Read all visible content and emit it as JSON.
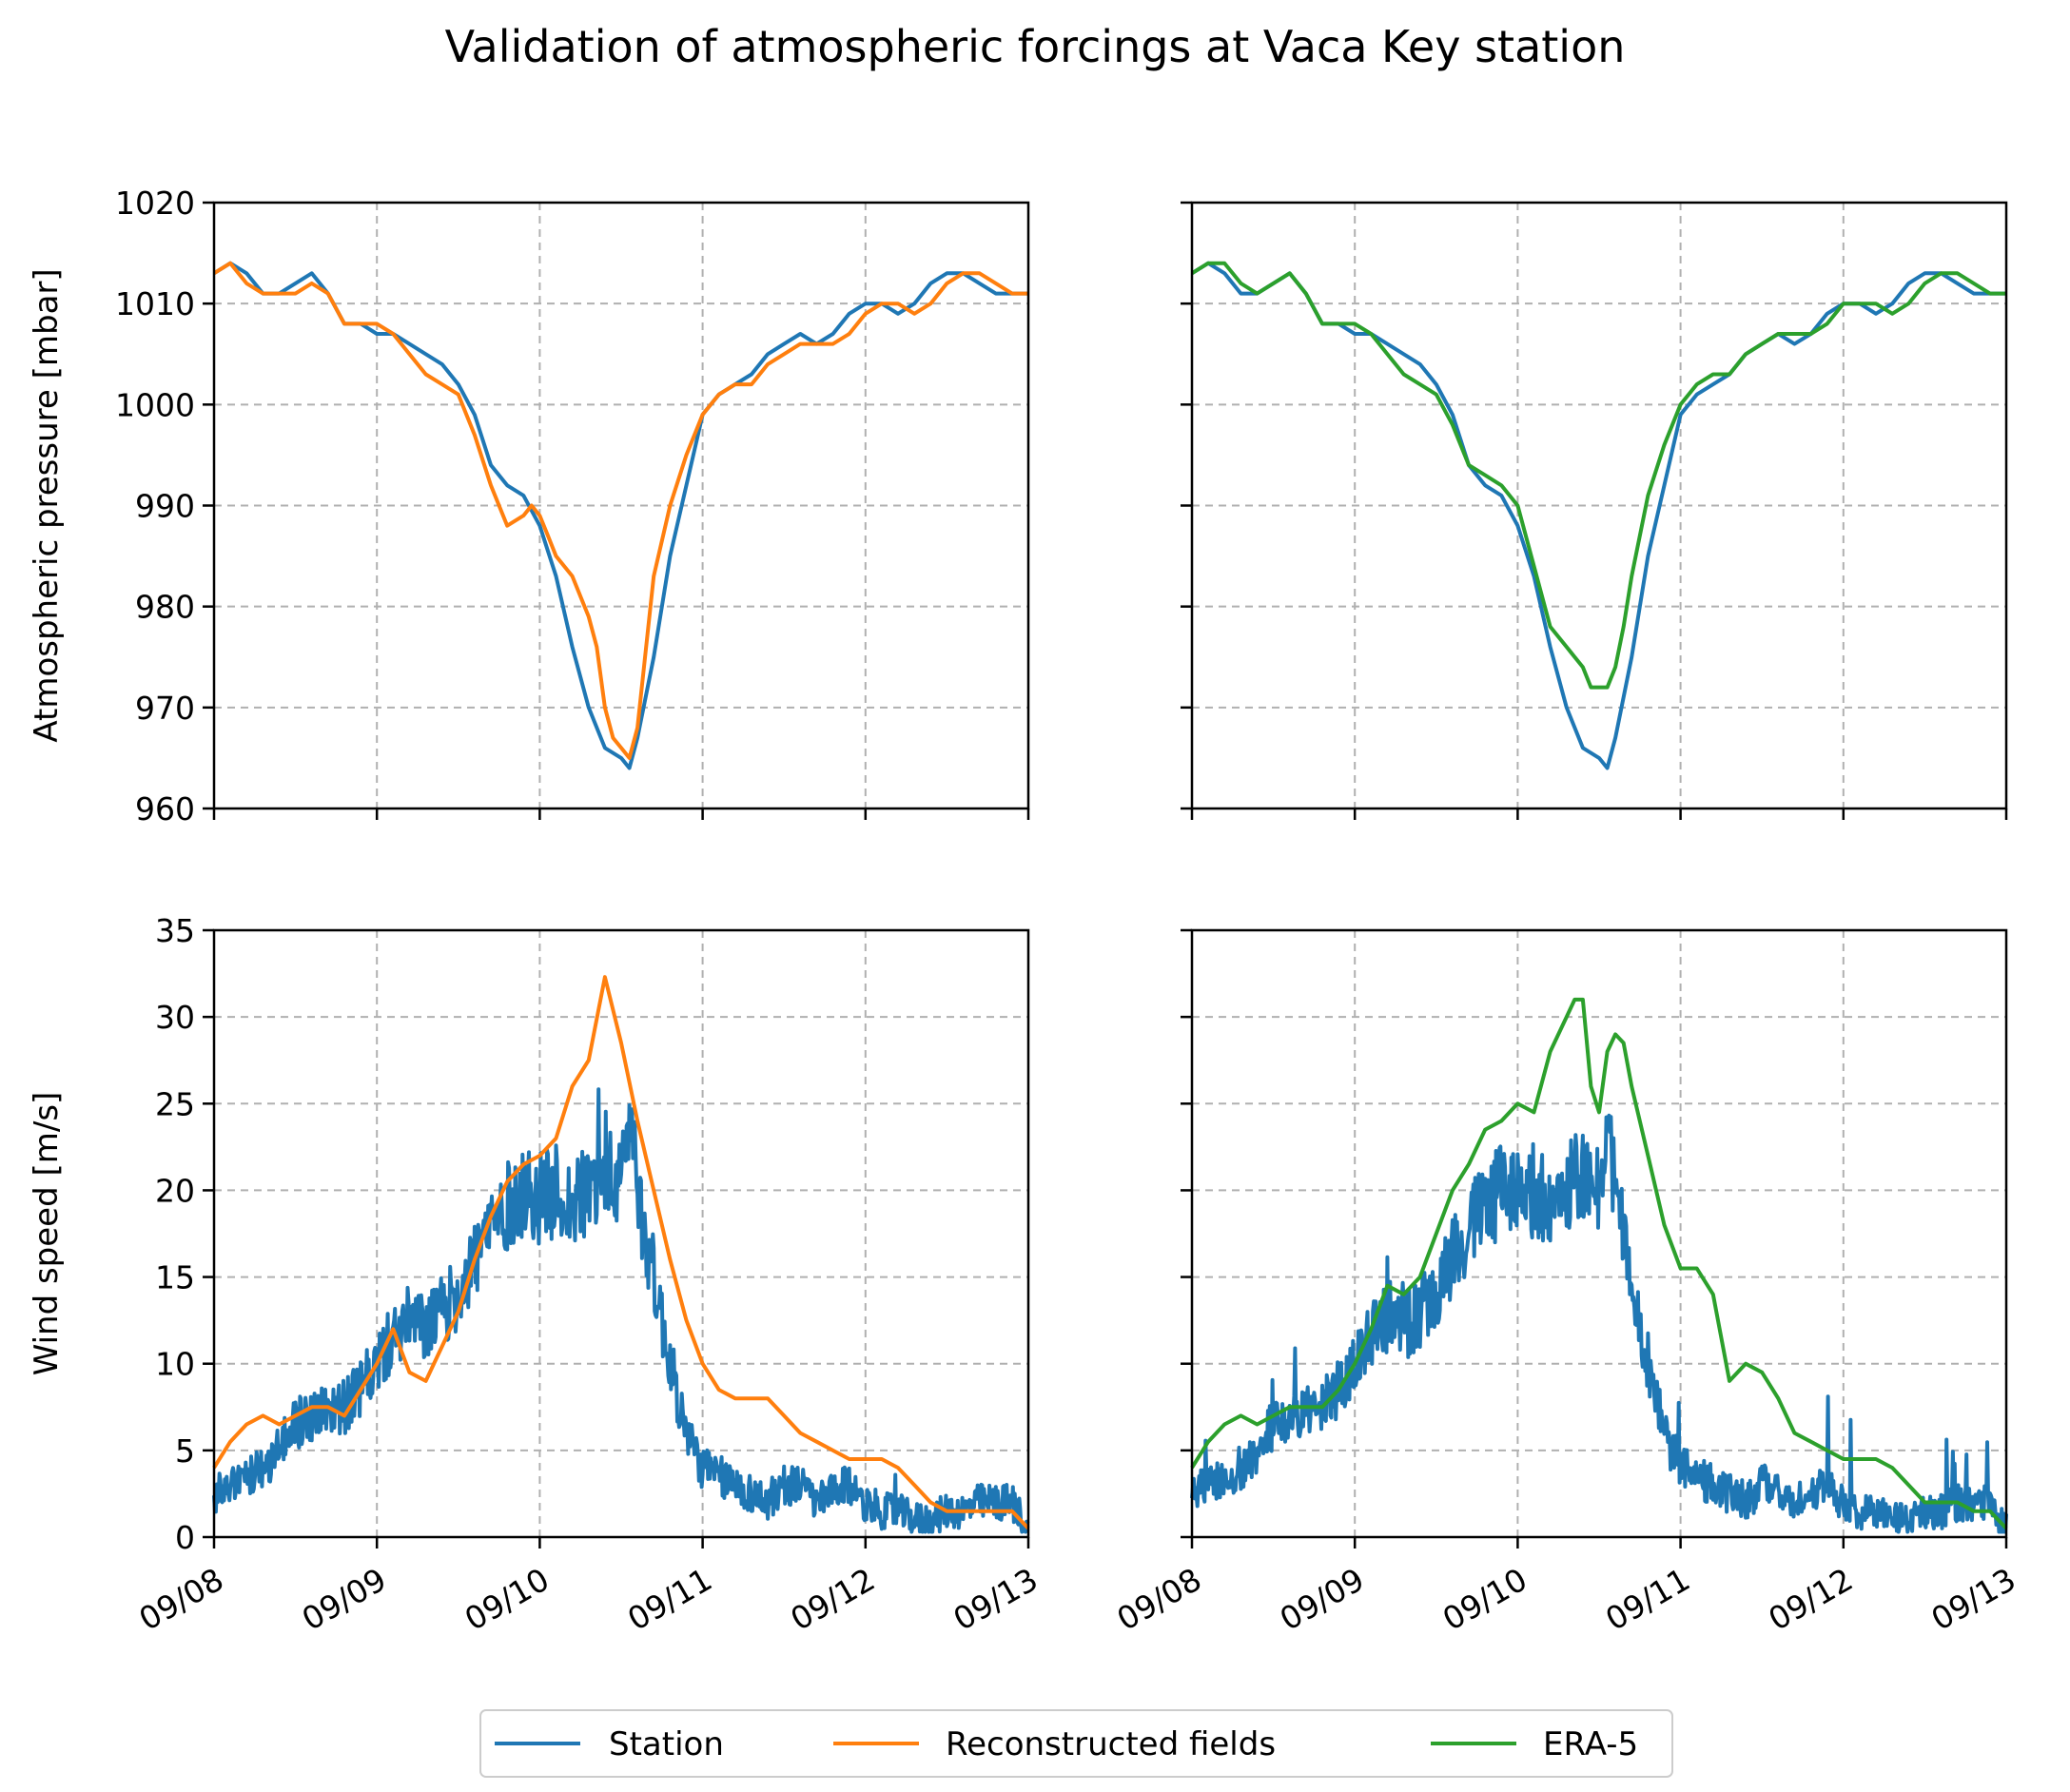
{
  "title": "Validation of atmospheric forcings at Vaca Key station",
  "colors": {
    "station": "#1f77b4",
    "reconstructed": "#ff7f0e",
    "era5": "#2ca02c"
  },
  "legend": {
    "placement": "bottom-center",
    "items": [
      "Station",
      "Reconstructed fields",
      "ERA-5"
    ]
  },
  "chart_data": [
    {
      "type": "line",
      "position": "top-left",
      "xlabel": "",
      "ylabel": "Atmospheric pressure [mbar]",
      "xlim": [
        "09/08",
        "09/13"
      ],
      "ylim": [
        960,
        1020
      ],
      "yticks": [
        960,
        970,
        980,
        990,
        1000,
        1010,
        1020
      ],
      "xticks": [
        "09/08",
        "09/09",
        "09/10",
        "09/11",
        "09/12",
        "09/13"
      ],
      "show_xticklabels": false,
      "show_yticklabels": true,
      "grid": true,
      "series": [
        {
          "name": "Station",
          "color": "#1f77b4",
          "x": [
            0,
            0.1,
            0.2,
            0.3,
            0.4,
            0.5,
            0.6,
            0.7,
            0.8,
            0.9,
            1.0,
            1.1,
            1.2,
            1.3,
            1.4,
            1.5,
            1.6,
            1.7,
            1.8,
            1.9,
            2.0,
            2.1,
            2.2,
            2.3,
            2.4,
            2.5,
            2.55,
            2.6,
            2.7,
            2.8,
            2.9,
            3.0,
            3.1,
            3.2,
            3.3,
            3.4,
            3.5,
            3.6,
            3.7,
            3.8,
            3.9,
            4.0,
            4.1,
            4.2,
            4.3,
            4.4,
            4.5,
            4.6,
            4.7,
            4.8,
            4.9,
            5.0
          ],
          "y": [
            1013,
            1014,
            1013,
            1011,
            1011,
            1012,
            1013,
            1011,
            1008,
            1008,
            1007,
            1007,
            1006,
            1005,
            1004,
            1002,
            999,
            994,
            992,
            991,
            988,
            983,
            976,
            970,
            966,
            965,
            964,
            967,
            975,
            985,
            992,
            999,
            1001,
            1002,
            1003,
            1005,
            1006,
            1007,
            1006,
            1007,
            1009,
            1010,
            1010,
            1009,
            1010,
            1012,
            1013,
            1013,
            1012,
            1011,
            1011,
            1011
          ]
        },
        {
          "name": "Reconstructed fields",
          "color": "#ff7f0e",
          "x": [
            0,
            0.1,
            0.2,
            0.3,
            0.4,
            0.5,
            0.6,
            0.7,
            0.8,
            0.9,
            1.0,
            1.1,
            1.2,
            1.3,
            1.4,
            1.5,
            1.6,
            1.7,
            1.8,
            1.9,
            1.95,
            2.0,
            2.05,
            2.1,
            2.2,
            2.3,
            2.35,
            2.4,
            2.45,
            2.5,
            2.55,
            2.6,
            2.7,
            2.8,
            2.9,
            3.0,
            3.1,
            3.2,
            3.3,
            3.4,
            3.5,
            3.6,
            3.7,
            3.8,
            3.9,
            4.0,
            4.1,
            4.2,
            4.3,
            4.4,
            4.5,
            4.6,
            4.7,
            4.8,
            4.9,
            5.0
          ],
          "y": [
            1013,
            1014,
            1012,
            1011,
            1011,
            1011,
            1012,
            1011,
            1008,
            1008,
            1008,
            1007,
            1005,
            1003,
            1002,
            1001,
            997,
            992,
            988,
            989,
            990,
            989,
            987,
            985,
            983,
            979,
            976,
            970,
            967,
            966,
            965,
            968,
            983,
            990,
            995,
            999,
            1001,
            1002,
            1002,
            1004,
            1005,
            1006,
            1006,
            1006,
            1007,
            1009,
            1010,
            1010,
            1009,
            1010,
            1012,
            1013,
            1013,
            1012,
            1011,
            1011
          ]
        },
        {
          "name": "ERA-5",
          "color": "#2ca02c",
          "visible": false,
          "x": [],
          "y": []
        }
      ]
    },
    {
      "type": "line",
      "position": "top-right",
      "xlabel": "",
      "ylabel": "",
      "xlim": [
        "09/08",
        "09/13"
      ],
      "ylim": [
        960,
        1020
      ],
      "yticks": [
        960,
        970,
        980,
        990,
        1000,
        1010,
        1020
      ],
      "xticks": [
        "09/08",
        "09/09",
        "09/10",
        "09/11",
        "09/12",
        "09/13"
      ],
      "show_xticklabels": false,
      "show_yticklabels": false,
      "grid": true,
      "series": [
        {
          "name": "Station",
          "color": "#1f77b4",
          "x": [
            0,
            0.1,
            0.2,
            0.3,
            0.4,
            0.5,
            0.6,
            0.7,
            0.8,
            0.9,
            1.0,
            1.1,
            1.2,
            1.3,
            1.4,
            1.5,
            1.6,
            1.7,
            1.8,
            1.9,
            2.0,
            2.1,
            2.2,
            2.3,
            2.4,
            2.5,
            2.55,
            2.6,
            2.7,
            2.8,
            2.9,
            3.0,
            3.1,
            3.2,
            3.3,
            3.4,
            3.5,
            3.6,
            3.7,
            3.8,
            3.9,
            4.0,
            4.1,
            4.2,
            4.3,
            4.4,
            4.5,
            4.6,
            4.7,
            4.8,
            4.9,
            5.0
          ],
          "y": [
            1013,
            1014,
            1013,
            1011,
            1011,
            1012,
            1013,
            1011,
            1008,
            1008,
            1007,
            1007,
            1006,
            1005,
            1004,
            1002,
            999,
            994,
            992,
            991,
            988,
            983,
            976,
            970,
            966,
            965,
            964,
            967,
            975,
            985,
            992,
            999,
            1001,
            1002,
            1003,
            1005,
            1006,
            1007,
            1006,
            1007,
            1009,
            1010,
            1010,
            1009,
            1010,
            1012,
            1013,
            1013,
            1012,
            1011,
            1011,
            1011
          ]
        },
        {
          "name": "Reconstructed fields",
          "color": "#ff7f0e",
          "visible": false,
          "x": [],
          "y": []
        },
        {
          "name": "ERA-5",
          "color": "#2ca02c",
          "x": [
            0,
            0.1,
            0.2,
            0.3,
            0.4,
            0.5,
            0.6,
            0.7,
            0.8,
            0.9,
            1.0,
            1.1,
            1.2,
            1.3,
            1.4,
            1.5,
            1.6,
            1.7,
            1.8,
            1.9,
            2.0,
            2.1,
            2.2,
            2.25,
            2.3,
            2.35,
            2.4,
            2.45,
            2.5,
            2.55,
            2.6,
            2.65,
            2.7,
            2.8,
            2.9,
            3.0,
            3.1,
            3.2,
            3.3,
            3.4,
            3.5,
            3.6,
            3.7,
            3.8,
            3.9,
            4.0,
            4.1,
            4.2,
            4.3,
            4.4,
            4.5,
            4.6,
            4.7,
            4.8,
            4.9,
            5.0
          ],
          "y": [
            1013,
            1014,
            1014,
            1012,
            1011,
            1012,
            1013,
            1011,
            1008,
            1008,
            1008,
            1007,
            1005,
            1003,
            1002,
            1001,
            998,
            994,
            993,
            992,
            990,
            984,
            978,
            977,
            976,
            975,
            974,
            972,
            972,
            972,
            974,
            978,
            983,
            991,
            996,
            1000,
            1002,
            1003,
            1003,
            1005,
            1006,
            1007,
            1007,
            1007,
            1008,
            1010,
            1010,
            1010,
            1009,
            1010,
            1012,
            1013,
            1013,
            1012,
            1011,
            1011
          ]
        }
      ]
    },
    {
      "type": "line",
      "position": "bottom-left",
      "xlabel": "",
      "ylabel": "Wind speed [m/s]",
      "xlim": [
        "09/08",
        "09/13"
      ],
      "ylim": [
        0,
        35
      ],
      "yticks": [
        0,
        5,
        10,
        15,
        20,
        25,
        30,
        35
      ],
      "xticks": [
        "09/08",
        "09/09",
        "09/10",
        "09/11",
        "09/12",
        "09/13"
      ],
      "show_xticklabels": true,
      "show_yticklabels": true,
      "grid": true,
      "series": [
        {
          "name": "Station",
          "color": "#1f77b4",
          "noisy": true,
          "x": [
            0,
            0.1,
            0.2,
            0.3,
            0.4,
            0.5,
            0.6,
            0.7,
            0.8,
            0.9,
            1.0,
            1.1,
            1.2,
            1.3,
            1.4,
            1.5,
            1.6,
            1.7,
            1.8,
            1.9,
            2.0,
            2.1,
            2.2,
            2.3,
            2.4,
            2.5,
            2.55,
            2.6,
            2.7,
            2.8,
            2.9,
            3.0,
            3.1,
            3.2,
            3.3,
            3.4,
            3.5,
            3.6,
            3.7,
            3.8,
            3.9,
            4.0,
            4.1,
            4.2,
            4.3,
            4.4,
            4.5,
            4.6,
            4.7,
            4.8,
            4.9,
            5.0
          ],
          "y": [
            2.5,
            3,
            3.5,
            4,
            5,
            6.5,
            7,
            7.5,
            7.5,
            8.5,
            10,
            11.5,
            12.5,
            12,
            13,
            14,
            16,
            18,
            19,
            20,
            19.5,
            20,
            19,
            20,
            21,
            20,
            25,
            20,
            15,
            10,
            6,
            4,
            3.5,
            3,
            2.5,
            2,
            3,
            3,
            2,
            2.5,
            3,
            2,
            1.5,
            1.5,
            1,
            1,
            1.5,
            1.5,
            2,
            2,
            2,
            0.5
          ]
        },
        {
          "name": "Reconstructed fields",
          "color": "#ff7f0e",
          "x": [
            0,
            0.1,
            0.2,
            0.3,
            0.4,
            0.5,
            0.6,
            0.7,
            0.8,
            0.9,
            1.0,
            1.1,
            1.2,
            1.3,
            1.4,
            1.5,
            1.6,
            1.7,
            1.8,
            1.9,
            2.0,
            2.1,
            2.2,
            2.3,
            2.4,
            2.5,
            2.6,
            2.7,
            2.8,
            2.9,
            3.0,
            3.1,
            3.2,
            3.3,
            3.4,
            3.5,
            3.6,
            3.7,
            3.8,
            3.9,
            4.0,
            4.1,
            4.2,
            4.3,
            4.4,
            4.5,
            4.6,
            4.7,
            4.8,
            4.9,
            5.0
          ],
          "y": [
            4,
            5.5,
            6.5,
            7,
            6.5,
            7,
            7.5,
            7.5,
            7,
            8.5,
            10,
            12,
            9.5,
            9,
            11,
            13,
            16,
            18.5,
            20.5,
            21.5,
            22,
            23,
            26,
            27.5,
            32.3,
            28.5,
            24,
            20,
            16,
            12.5,
            10,
            8.5,
            8,
            8,
            8,
            7,
            6,
            5.5,
            5,
            4.5,
            4.5,
            4.5,
            4,
            3,
            2,
            1.5,
            1.5,
            1.5,
            1.5,
            1.5,
            0.5
          ]
        },
        {
          "name": "ERA-5",
          "color": "#2ca02c",
          "visible": false,
          "x": [],
          "y": []
        }
      ]
    },
    {
      "type": "line",
      "position": "bottom-right",
      "xlabel": "",
      "ylabel": "",
      "xlim": [
        "09/08",
        "09/13"
      ],
      "ylim": [
        0,
        35
      ],
      "yticks": [
        0,
        5,
        10,
        15,
        20,
        25,
        30,
        35
      ],
      "xticks": [
        "09/08",
        "09/09",
        "09/10",
        "09/11",
        "09/12",
        "09/13"
      ],
      "show_xticklabels": true,
      "show_yticklabels": false,
      "grid": true,
      "series": [
        {
          "name": "Station",
          "color": "#1f77b4",
          "noisy": true,
          "x": [
            0,
            0.1,
            0.2,
            0.3,
            0.4,
            0.5,
            0.6,
            0.7,
            0.8,
            0.9,
            1.0,
            1.1,
            1.2,
            1.3,
            1.4,
            1.5,
            1.6,
            1.7,
            1.8,
            1.9,
            2.0,
            2.1,
            2.2,
            2.3,
            2.4,
            2.5,
            2.55,
            2.6,
            2.7,
            2.8,
            2.9,
            3.0,
            3.1,
            3.2,
            3.3,
            3.4,
            3.5,
            3.6,
            3.7,
            3.8,
            3.9,
            4.0,
            4.1,
            4.2,
            4.3,
            4.4,
            4.5,
            4.6,
            4.7,
            4.8,
            4.9,
            5.0
          ],
          "y": [
            2.5,
            3,
            3.5,
            4,
            5,
            6.5,
            7,
            7.5,
            7.5,
            8.5,
            10,
            11.5,
            12.5,
            12,
            13,
            14,
            16,
            18,
            19,
            20,
            19.5,
            20,
            19,
            20,
            21,
            20,
            25,
            20,
            15,
            10,
            6,
            4,
            3.5,
            3,
            2.5,
            2,
            3,
            3,
            2,
            2.5,
            3,
            2,
            1.5,
            1.5,
            1,
            1,
            1.5,
            1.5,
            2,
            2,
            2,
            0.5
          ]
        },
        {
          "name": "Reconstructed fields",
          "color": "#ff7f0e",
          "visible": false,
          "x": [],
          "y": []
        },
        {
          "name": "ERA-5",
          "color": "#2ca02c",
          "x": [
            0,
            0.1,
            0.2,
            0.3,
            0.4,
            0.5,
            0.6,
            0.7,
            0.8,
            0.9,
            1.0,
            1.1,
            1.2,
            1.3,
            1.4,
            1.5,
            1.6,
            1.7,
            1.8,
            1.9,
            2.0,
            2.1,
            2.2,
            2.3,
            2.35,
            2.4,
            2.45,
            2.5,
            2.55,
            2.6,
            2.65,
            2.7,
            2.8,
            2.9,
            3.0,
            3.1,
            3.2,
            3.3,
            3.4,
            3.5,
            3.6,
            3.7,
            3.8,
            3.9,
            4.0,
            4.1,
            4.2,
            4.3,
            4.4,
            4.5,
            4.6,
            4.7,
            4.8,
            4.9,
            5.0
          ],
          "y": [
            4,
            5.5,
            6.5,
            7,
            6.5,
            7,
            7.5,
            7.5,
            7.5,
            8.5,
            10,
            12,
            14.5,
            14,
            15,
            17.5,
            20,
            21.5,
            23.5,
            24,
            25,
            24.5,
            28,
            30,
            31,
            31,
            26,
            24.5,
            28,
            29,
            28.5,
            26,
            22,
            18,
            15.5,
            15.5,
            14,
            9,
            10,
            9.5,
            8,
            6,
            5.5,
            5,
            4.5,
            4.5,
            4.5,
            4,
            3,
            2,
            2,
            2,
            1.5,
            1.5,
            0.5
          ]
        }
      ]
    }
  ]
}
